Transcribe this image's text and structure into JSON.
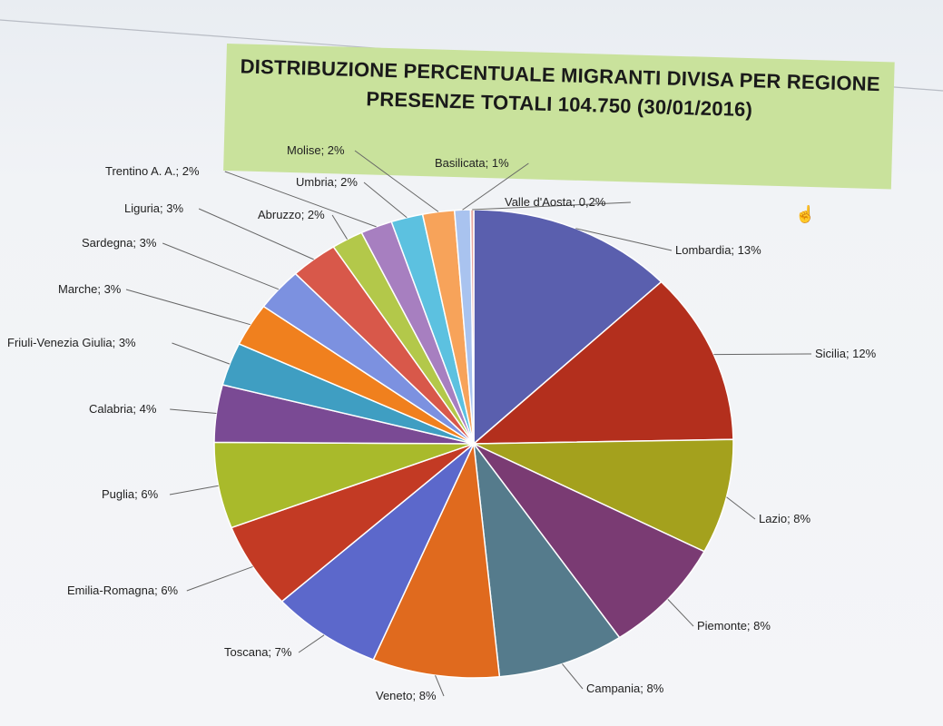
{
  "chart_data": {
    "type": "pie",
    "title": "DISTRIBUZIONE PERCENTUALE MIGRANTI DIVISA PER REGIONE",
    "subtitle": "PRESENZE TOTALI 104.750 (30/01/2016)",
    "slices": [
      {
        "label": "Lombardia; 13%",
        "region": "Lombardia",
        "value": 13,
        "color": "#5a5fae"
      },
      {
        "label": "Sicilia; 12%",
        "region": "Sicilia",
        "value": 12,
        "color": "#b32f1d"
      },
      {
        "label": "Lazio; 8%",
        "region": "Lazio",
        "value": 8,
        "color": "#a4a11d"
      },
      {
        "label": "Piemonte; 8%",
        "region": "Piemonte",
        "value": 8,
        "color": "#7a3b73"
      },
      {
        "label": "Campania; 8%",
        "region": "Campania",
        "value": 8,
        "color": "#557b8c"
      },
      {
        "label": "Veneto; 8%",
        "region": "Veneto",
        "value": 8,
        "color": "#e06a1e"
      },
      {
        "label": "Toscana; 7%",
        "region": "Toscana",
        "value": 7,
        "color": "#5c68cb"
      },
      {
        "label": "Emilia-Romagna; 6%",
        "region": "Emilia-Romagna",
        "value": 6,
        "color": "#c33a24"
      },
      {
        "label": "Puglia; 6%",
        "region": "Puglia",
        "value": 6,
        "color": "#a9ba2b"
      },
      {
        "label": "Calabria; 4%",
        "region": "Calabria",
        "value": 4,
        "color": "#7a4a94"
      },
      {
        "label": "Friuli-Venezia Giulia; 3%",
        "region": "Friuli-Venezia Giulia",
        "value": 3,
        "color": "#3f9ec2"
      },
      {
        "label": "Marche; 3%",
        "region": "Marche",
        "value": 3,
        "color": "#f0801e"
      },
      {
        "label": "Sardegna; 3%",
        "region": "Sardegna",
        "value": 3,
        "color": "#7c91e0"
      },
      {
        "label": "Liguria; 3%",
        "region": "Liguria",
        "value": 3,
        "color": "#d8584a"
      },
      {
        "label": "Abruzzo; 2%",
        "region": "Abruzzo",
        "value": 2,
        "color": "#b3c84a"
      },
      {
        "label": "Trentino A. A.; 2%",
        "region": "Trentino A. A.",
        "value": 2,
        "color": "#a77fc0"
      },
      {
        "label": "Umbria; 2%",
        "region": "Umbria",
        "value": 2,
        "color": "#5cc1e0"
      },
      {
        "label": "Molise; 2%",
        "region": "Molise",
        "value": 2,
        "color": "#f7a35a"
      },
      {
        "label": "Basilicata; 1%",
        "region": "Basilicata",
        "value": 1,
        "color": "#a9c3ef"
      },
      {
        "label": "Valle d'Aosta; 0,2%",
        "region": "Valle d'Aosta",
        "value": 0.2,
        "color": "#e8a8a0"
      }
    ],
    "legend": "none",
    "data_labels": "outside with leader lines"
  },
  "cursor_icon": "hand-pointer-icon"
}
